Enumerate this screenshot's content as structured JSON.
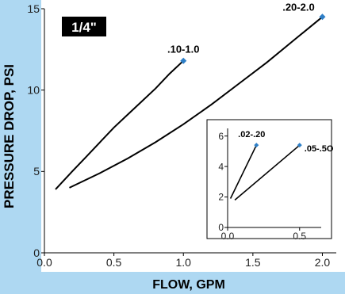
{
  "chart_data": [
    {
      "type": "line",
      "badge": "1/4\"",
      "xlabel": "FLOW, GPM",
      "ylabel": "PRESSURE DROP, PSI",
      "xlim": [
        0,
        2.1
      ],
      "ylim": [
        0,
        15
      ],
      "x_ticks": [
        "0.0",
        "0.5",
        "1.0",
        "1.5",
        "2.0"
      ],
      "x_tick_values": [
        0,
        0.5,
        1.0,
        1.5,
        2.0
      ],
      "y_ticks": [
        "0",
        "5",
        "10",
        "15"
      ],
      "y_tick_values": [
        0,
        5,
        10,
        15
      ],
      "grid": false,
      "series": [
        {
          "name": ".10-1.0",
          "x": [
            0.08,
            0.2,
            0.3,
            0.4,
            0.5,
            0.6,
            0.7,
            0.8,
            0.9,
            1.0
          ],
          "y": [
            3.9,
            5.0,
            5.9,
            6.8,
            7.7,
            8.5,
            9.3,
            10.1,
            11.0,
            11.8
          ]
        },
        {
          "name": ".20-2.0",
          "x": [
            0.18,
            0.4,
            0.6,
            0.8,
            1.0,
            1.2,
            1.4,
            1.6,
            1.8,
            2.0
          ],
          "y": [
            4.0,
            4.9,
            5.8,
            6.8,
            7.9,
            9.1,
            10.4,
            11.7,
            13.1,
            14.5
          ]
        }
      ],
      "colors": {
        "line": "#000000",
        "marker": "#2e7fc7",
        "badge_bg": "#000000",
        "badge_fg": "#ffffff",
        "frame": "#aed8f2"
      }
    },
    {
      "type": "line",
      "inset": true,
      "xlim": [
        0,
        0.65
      ],
      "ylim": [
        0,
        6.5
      ],
      "x_ticks": [
        "0.0",
        "0.5"
      ],
      "x_tick_values": [
        0,
        0.5
      ],
      "y_ticks": [
        "0",
        "2",
        "4",
        "6"
      ],
      "y_tick_values": [
        0,
        2,
        4,
        6
      ],
      "series": [
        {
          "name": ".02-.20",
          "x": [
            0.02,
            0.2
          ],
          "y": [
            1.9,
            5.4
          ]
        },
        {
          "name": ".05-.5O",
          "x": [
            0.05,
            0.5
          ],
          "y": [
            1.8,
            5.4
          ]
        }
      ]
    }
  ]
}
